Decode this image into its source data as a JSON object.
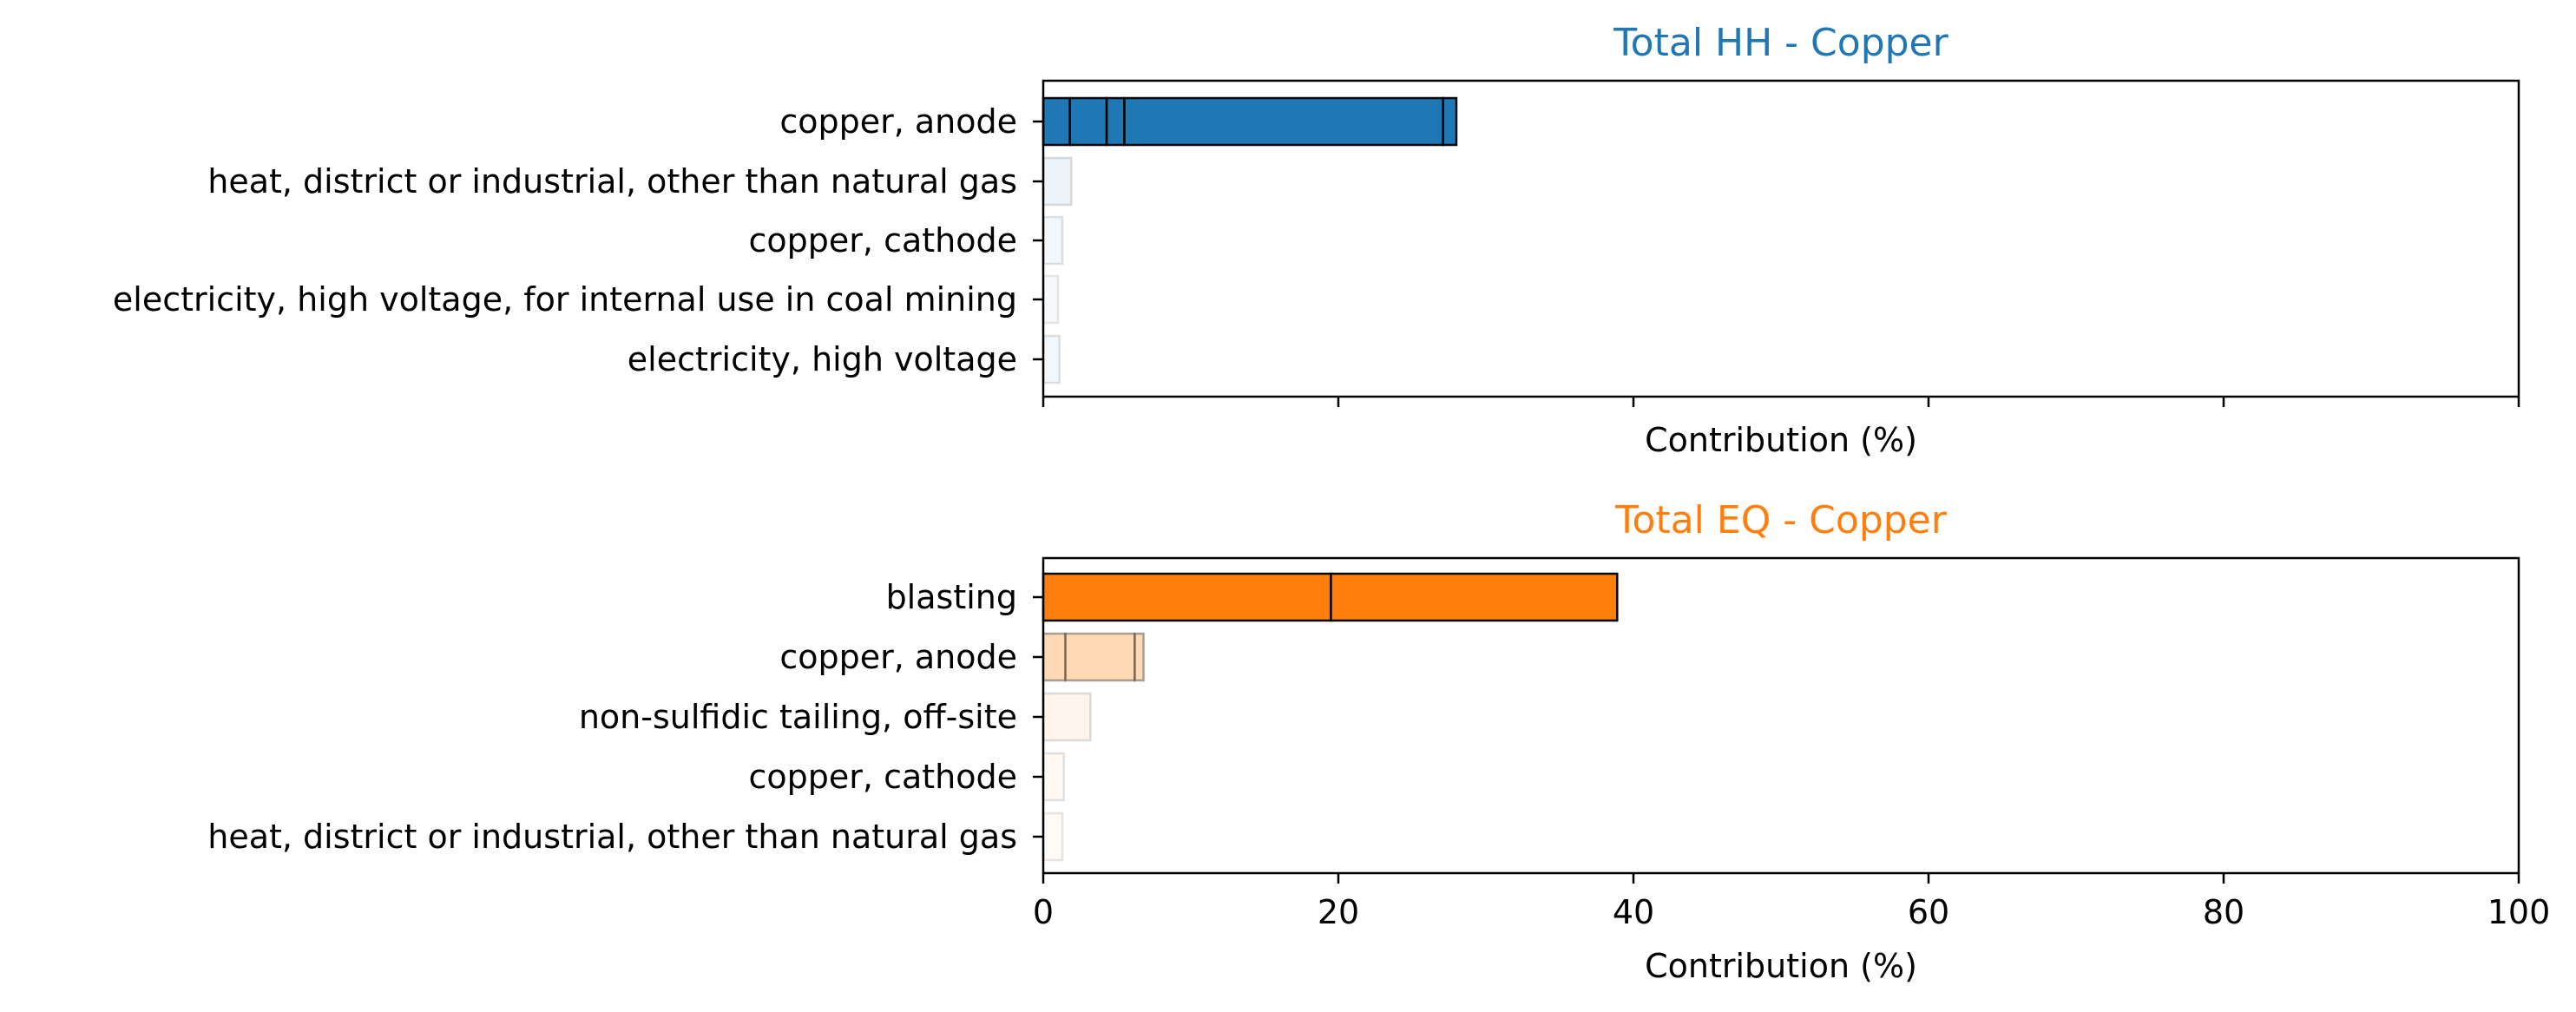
{
  "chart_data": [
    {
      "type": "bar",
      "orientation": "horizontal",
      "stacked": true,
      "title": "Total HH - Copper",
      "title_color": "#1f77b4",
      "xlabel": "Contribution (%)",
      "ylabel": "",
      "xlim": [
        0,
        100
      ],
      "x_tick_labels_visible": false,
      "categories": [
        "copper, anode",
        "heat, district or industrial, other than natural gas",
        "copper, cathode",
        "electricity, high voltage, for internal use in coal mining",
        "electricity, high voltage"
      ],
      "segments": [
        [
          1.8,
          2.5,
          1.2,
          21.6,
          0.9
        ],
        [
          1.9
        ],
        [
          1.3
        ],
        [
          1.0
        ],
        [
          1.1
        ]
      ],
      "totals": [
        28.0,
        1.9,
        1.3,
        1.0,
        1.1
      ],
      "opacity": [
        1.0,
        0.08,
        0.06,
        0.04,
        0.06
      ],
      "color": "#1f77b4",
      "grid": false
    },
    {
      "type": "bar",
      "orientation": "horizontal",
      "stacked": true,
      "title": "Total EQ - Copper",
      "title_color": "#ff7f0e",
      "xlabel": "Contribution (%)",
      "ylabel": "",
      "xlim": [
        0,
        100
      ],
      "x_ticks": [
        0,
        20,
        40,
        60,
        80,
        100
      ],
      "x_tick_labels_visible": true,
      "categories": [
        "blasting",
        "copper, anode",
        "non-sulfidic tailing, off-site",
        "copper, cathode",
        "heat, district or industrial, other than natural gas"
      ],
      "segments": [
        [
          19.5,
          19.4
        ],
        [
          1.5,
          4.7,
          0.6
        ],
        [
          3.2
        ],
        [
          1.4
        ],
        [
          1.3
        ]
      ],
      "totals": [
        38.9,
        6.8,
        3.2,
        1.4,
        1.3
      ],
      "opacity": [
        1.0,
        0.3,
        0.08,
        0.05,
        0.04
      ],
      "color": "#ff7f0e",
      "grid": false
    }
  ]
}
